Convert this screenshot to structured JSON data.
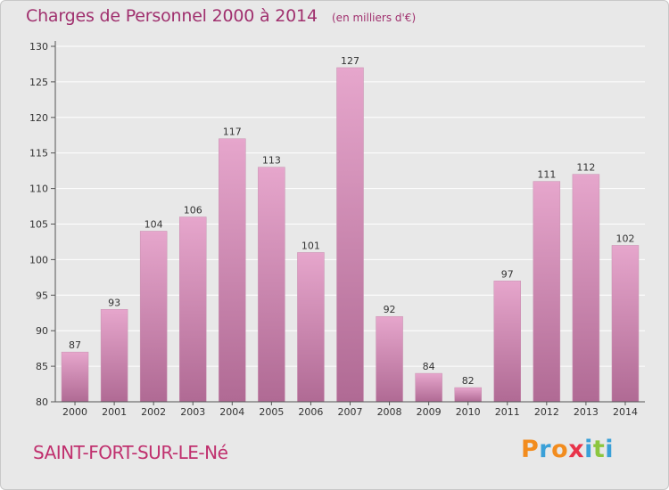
{
  "chart_data": {
    "type": "bar",
    "title": "Charges de Personnel 2000 à 2014",
    "subtitle": "(en milliers d'€)",
    "categories": [
      "2000",
      "2001",
      "2002",
      "2003",
      "2004",
      "2005",
      "2006",
      "2007",
      "2008",
      "2009",
      "2010",
      "2011",
      "2012",
      "2013",
      "2014"
    ],
    "values": [
      87,
      93,
      104,
      106,
      117,
      113,
      101,
      127,
      92,
      84,
      82,
      97,
      111,
      112,
      102
    ],
    "y_ticks": [
      80,
      85,
      90,
      95,
      100,
      105,
      110,
      115,
      120,
      125,
      130
    ],
    "ylim": [
      80,
      130
    ],
    "grid": true,
    "bar_color_top": "#e6a6cc",
    "bar_color_bottom": "#b06a94"
  },
  "footer": {
    "place_name": "SAINT-FORT-SUR-LE-Né",
    "brand": "Proxiti"
  },
  "colors": {
    "title": "#a0306e",
    "place_name": "#c0306e",
    "background": "#e8e8e8",
    "brand_letters": [
      "#f28c1e",
      "#3aa0d8",
      "#f28c1e",
      "#e8334a",
      "#3aa0d8",
      "#8cc63f",
      "#3aa0d8"
    ]
  }
}
